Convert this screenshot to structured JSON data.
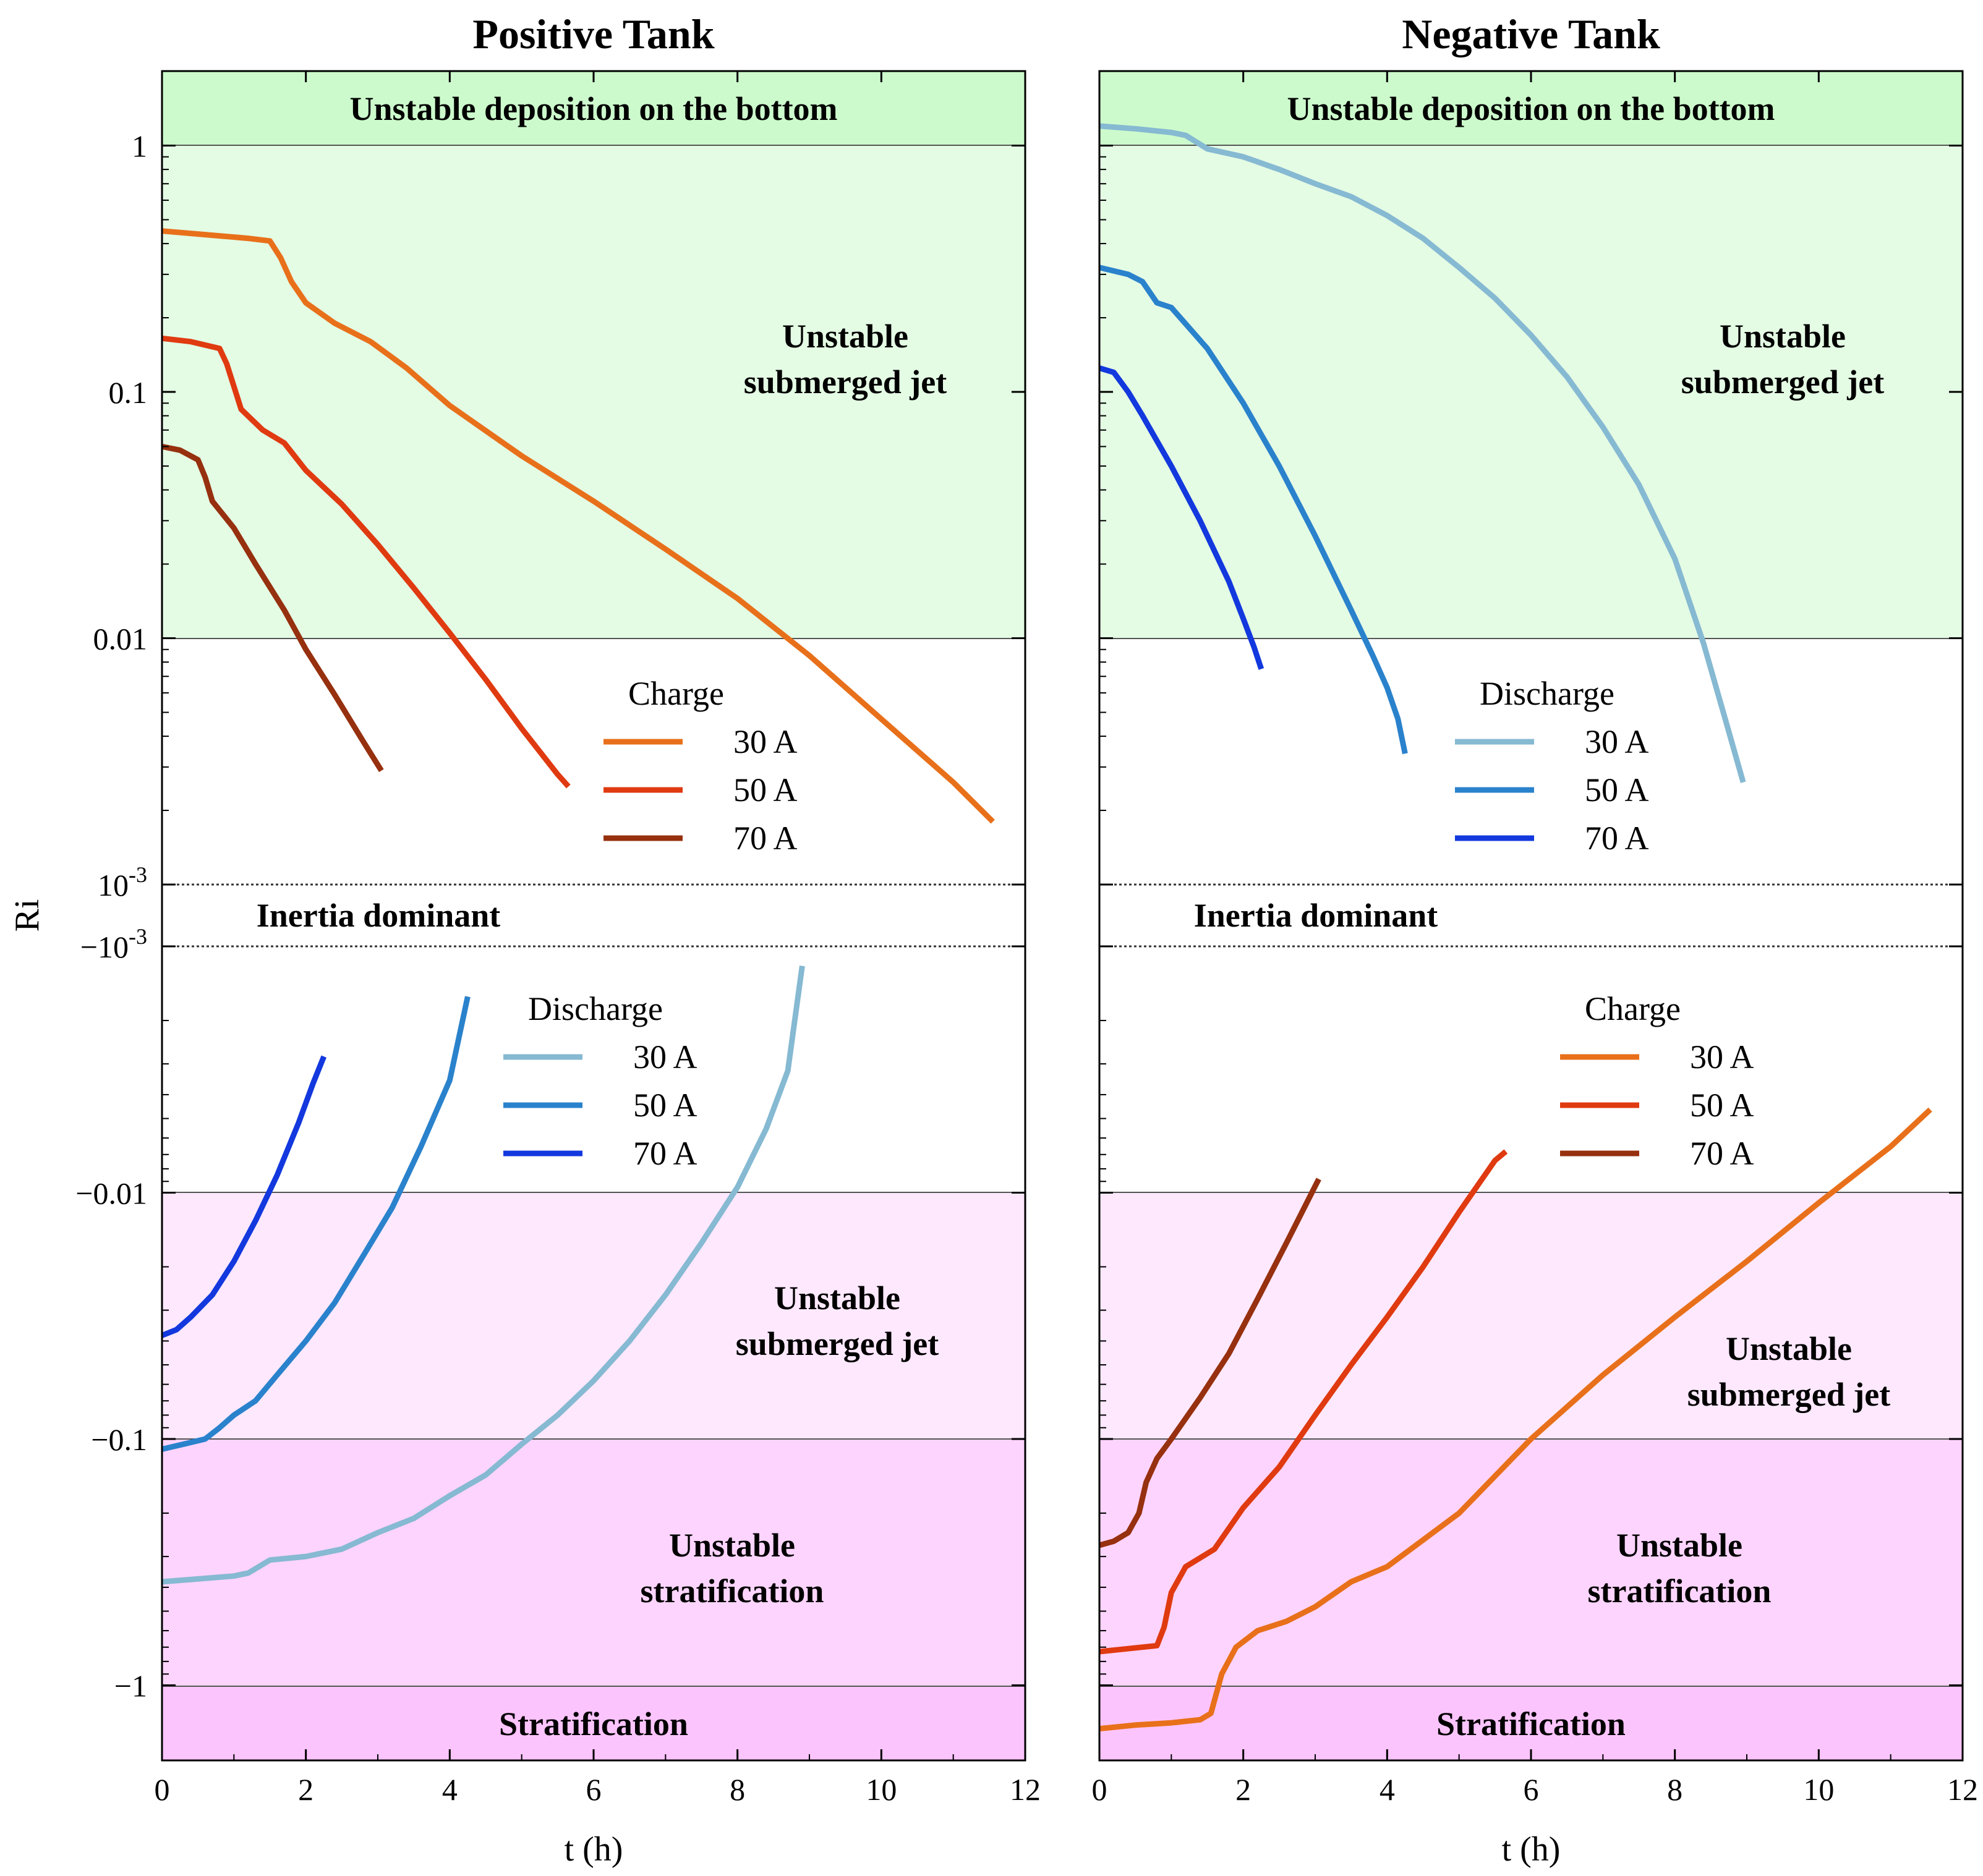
{
  "chart_data": {
    "type": "line",
    "ylabel": "Ri",
    "xlabel": "t (h)",
    "xlim": [
      0,
      12
    ],
    "x_ticks": [
      "0",
      "2",
      "4",
      "6",
      "8",
      "10",
      "12"
    ],
    "y_scale": "symlog",
    "y_ticks": [
      {
        "value": 1,
        "label": "1"
      },
      {
        "value": 0.1,
        "label": "0.1"
      },
      {
        "value": 0.01,
        "label": "0.01"
      },
      {
        "value": 0.001,
        "label": "10",
        "sup": "-3"
      },
      {
        "value": -0.001,
        "label": "−10",
        "sup": "-3"
      },
      {
        "value": -0.01,
        "label": "−0.01"
      },
      {
        "value": -0.1,
        "label": "−0.1"
      },
      {
        "value": -1,
        "label": "−1"
      }
    ],
    "colors": {
      "region_top": "#ccfacc",
      "region_jet_pos": "#e4fbe4",
      "region_jet_neg": "#fde8fd",
      "region_strat_unstable": "#fdd4fd",
      "region_strat": "#fcc4fc",
      "charge_30": "#e8701a",
      "charge_50": "#e03a10",
      "charge_70": "#96300e",
      "discharge_30": "#86b9d2",
      "discharge_50": "#2a82cc",
      "discharge_70": "#1238de"
    },
    "panels": [
      {
        "title": "Positive Tank",
        "regions": {
          "top": "Unstable deposition on the bottom",
          "jet_pos": [
            "Unstable",
            "submerged jet"
          ],
          "inertia": "Inertia dominant",
          "jet_neg": [
            "Unstable",
            "submerged jet"
          ],
          "strat_unstable": [
            "Unstable",
            "stratification"
          ],
          "strat": "Stratification"
        },
        "legend_upper": {
          "title": "Charge",
          "entries": [
            "30 A",
            "50 A",
            "70 A"
          ]
        },
        "legend_lower": {
          "title": "Discharge",
          "entries": [
            "30 A",
            "50 A",
            "70 A"
          ]
        },
        "series": [
          {
            "name": "Charge 30 A",
            "color_key": "charge_30",
            "x": [
              0,
              0.4,
              0.8,
              1.2,
              1.5,
              1.65,
              1.8,
              2.0,
              2.4,
              2.9,
              3.4,
              4.0,
              5.0,
              6.0,
              7.0,
              8.0,
              9.0,
              10.0,
              11.0,
              11.55
            ],
            "y": [
              0.45,
              0.44,
              0.43,
              0.42,
              0.41,
              0.35,
              0.28,
              0.23,
              0.19,
              0.16,
              0.125,
              0.088,
              0.055,
              0.036,
              0.023,
              0.0145,
              0.0085,
              0.0047,
              0.0026,
              0.0018
            ]
          },
          {
            "name": "Charge 50 A",
            "color_key": "charge_50",
            "x": [
              0,
              0.4,
              0.8,
              0.9,
              1.1,
              1.4,
              1.7,
              2.0,
              2.5,
              3.0,
              3.5,
              4.0,
              4.5,
              5.0,
              5.5,
              5.65
            ],
            "y": [
              0.165,
              0.16,
              0.15,
              0.13,
              0.085,
              0.07,
              0.062,
              0.048,
              0.035,
              0.024,
              0.016,
              0.0105,
              0.0068,
              0.0043,
              0.0028,
              0.0025
            ]
          },
          {
            "name": "Charge 70 A",
            "color_key": "charge_70",
            "x": [
              0,
              0.25,
              0.5,
              0.6,
              0.7,
              1.0,
              1.3,
              1.7,
              2.0,
              2.4,
              2.8,
              3.05
            ],
            "y": [
              0.06,
              0.058,
              0.053,
              0.045,
              0.036,
              0.028,
              0.02,
              0.013,
              0.009,
              0.0059,
              0.0038,
              0.0029
            ]
          },
          {
            "name": "Discharge 30 A",
            "color_key": "discharge_30",
            "x": [
              0,
              0.5,
              1.0,
              1.2,
              1.5,
              2.0,
              2.5,
              3.0,
              3.5,
              4.0,
              4.5,
              5.0,
              5.5,
              6.0,
              6.5,
              7.0,
              7.5,
              8.0,
              8.4,
              8.7,
              8.9
            ],
            "y": [
              -0.38,
              -0.37,
              -0.36,
              -0.35,
              -0.31,
              -0.3,
              -0.28,
              -0.24,
              -0.21,
              -0.17,
              -0.14,
              -0.105,
              -0.08,
              -0.058,
              -0.04,
              -0.026,
              -0.016,
              -0.0095,
              -0.0055,
              -0.0032,
              -0.0012
            ]
          },
          {
            "name": "Discharge 50 A",
            "color_key": "discharge_50",
            "x": [
              0,
              0.3,
              0.6,
              0.8,
              1.0,
              1.3,
              1.6,
              2.0,
              2.4,
              2.8,
              3.2,
              3.6,
              4.0,
              4.25
            ],
            "y": [
              -0.11,
              -0.105,
              -0.1,
              -0.09,
              -0.08,
              -0.07,
              -0.055,
              -0.04,
              -0.028,
              -0.018,
              -0.0115,
              -0.0065,
              -0.0035,
              -0.0016
            ]
          },
          {
            "name": "Discharge 70 A",
            "color_key": "discharge_70",
            "x": [
              0,
              0.2,
              0.4,
              0.7,
              1.0,
              1.3,
              1.6,
              1.9,
              2.1,
              2.25
            ],
            "y": [
              -0.038,
              -0.036,
              -0.032,
              -0.026,
              -0.019,
              -0.013,
              -0.0085,
              -0.0052,
              -0.0036,
              -0.0028
            ]
          }
        ]
      },
      {
        "title": "Negative Tank",
        "regions": {
          "top": "Unstable deposition on the bottom",
          "jet_pos": [
            "Unstable",
            "submerged jet"
          ],
          "inertia": "Inertia dominant",
          "jet_neg": [
            "Unstable",
            "submerged jet"
          ],
          "strat_unstable": [
            "Unstable",
            "stratification"
          ],
          "strat": "Stratification"
        },
        "legend_upper": {
          "title": "Discharge",
          "entries": [
            "30 A",
            "50 A",
            "70 A"
          ]
        },
        "legend_lower": {
          "title": "Charge",
          "entries": [
            "30 A",
            "50 A",
            "70 A"
          ]
        },
        "series": [
          {
            "name": "Discharge 30 A",
            "color_key": "discharge_30",
            "x": [
              0,
              0.5,
              1.0,
              1.2,
              1.5,
              2.0,
              2.5,
              3.0,
              3.5,
              4.0,
              4.5,
              5.0,
              5.5,
              6.0,
              6.5,
              7.0,
              7.5,
              8.0,
              8.4,
              8.7,
              8.95
            ],
            "y": [
              1.2,
              1.17,
              1.13,
              1.1,
              0.97,
              0.9,
              0.8,
              0.7,
              0.62,
              0.52,
              0.42,
              0.32,
              0.24,
              0.17,
              0.115,
              0.072,
              0.042,
              0.021,
              0.0095,
              0.0047,
              0.0026
            ]
          },
          {
            "name": "Discharge 50 A",
            "color_key": "discharge_50",
            "x": [
              0,
              0.4,
              0.6,
              0.8,
              1.0,
              1.5,
              2.0,
              2.5,
              3.0,
              3.5,
              3.8,
              4.0,
              4.15,
              4.25
            ],
            "y": [
              0.32,
              0.3,
              0.28,
              0.23,
              0.22,
              0.15,
              0.09,
              0.05,
              0.026,
              0.013,
              0.0085,
              0.0063,
              0.0047,
              0.0034
            ]
          },
          {
            "name": "Discharge 70 A",
            "color_key": "discharge_70",
            "x": [
              0,
              0.2,
              0.4,
              0.6,
              1.0,
              1.4,
              1.8,
              2.0,
              2.15,
              2.25
            ],
            "y": [
              0.125,
              0.12,
              0.1,
              0.08,
              0.05,
              0.03,
              0.017,
              0.012,
              0.0092,
              0.0075
            ]
          },
          {
            "name": "Charge 30 A",
            "color_key": "charge_30",
            "x": [
              0,
              0.5,
              1.0,
              1.4,
              1.55,
              1.7,
              1.9,
              2.2,
              2.6,
              3.0,
              3.5,
              4.0,
              5.0,
              6.0,
              7.0,
              8.0,
              9.0,
              10.0,
              11.0,
              11.55
            ],
            "y": [
              -1.5,
              -1.45,
              -1.42,
              -1.38,
              -1.3,
              -0.9,
              -0.7,
              -0.6,
              -0.55,
              -0.48,
              -0.38,
              -0.33,
              -0.2,
              -0.1,
              -0.055,
              -0.032,
              -0.019,
              -0.011,
              -0.0065,
              -0.0046
            ]
          },
          {
            "name": "Charge 50 A",
            "color_key": "charge_50",
            "x": [
              0,
              0.4,
              0.8,
              0.9,
              1.0,
              1.2,
              1.6,
              2.0,
              2.5,
              3.0,
              3.5,
              4.0,
              4.5,
              5.0,
              5.5,
              5.65
            ],
            "y": [
              -0.73,
              -0.71,
              -0.69,
              -0.58,
              -0.42,
              -0.33,
              -0.28,
              -0.19,
              -0.13,
              -0.08,
              -0.05,
              -0.032,
              -0.02,
              -0.012,
              -0.0074,
              -0.0068
            ]
          },
          {
            "name": "Charge 70 A",
            "color_key": "charge_70",
            "x": [
              0,
              0.2,
              0.4,
              0.55,
              0.65,
              0.8,
              1.0,
              1.4,
              1.8,
              2.2,
              2.6,
              3.0,
              3.05
            ],
            "y": [
              -0.27,
              -0.26,
              -0.24,
              -0.2,
              -0.15,
              -0.12,
              -0.1,
              -0.068,
              -0.045,
              -0.027,
              -0.016,
              -0.0094,
              -0.0088
            ]
          }
        ]
      }
    ]
  }
}
